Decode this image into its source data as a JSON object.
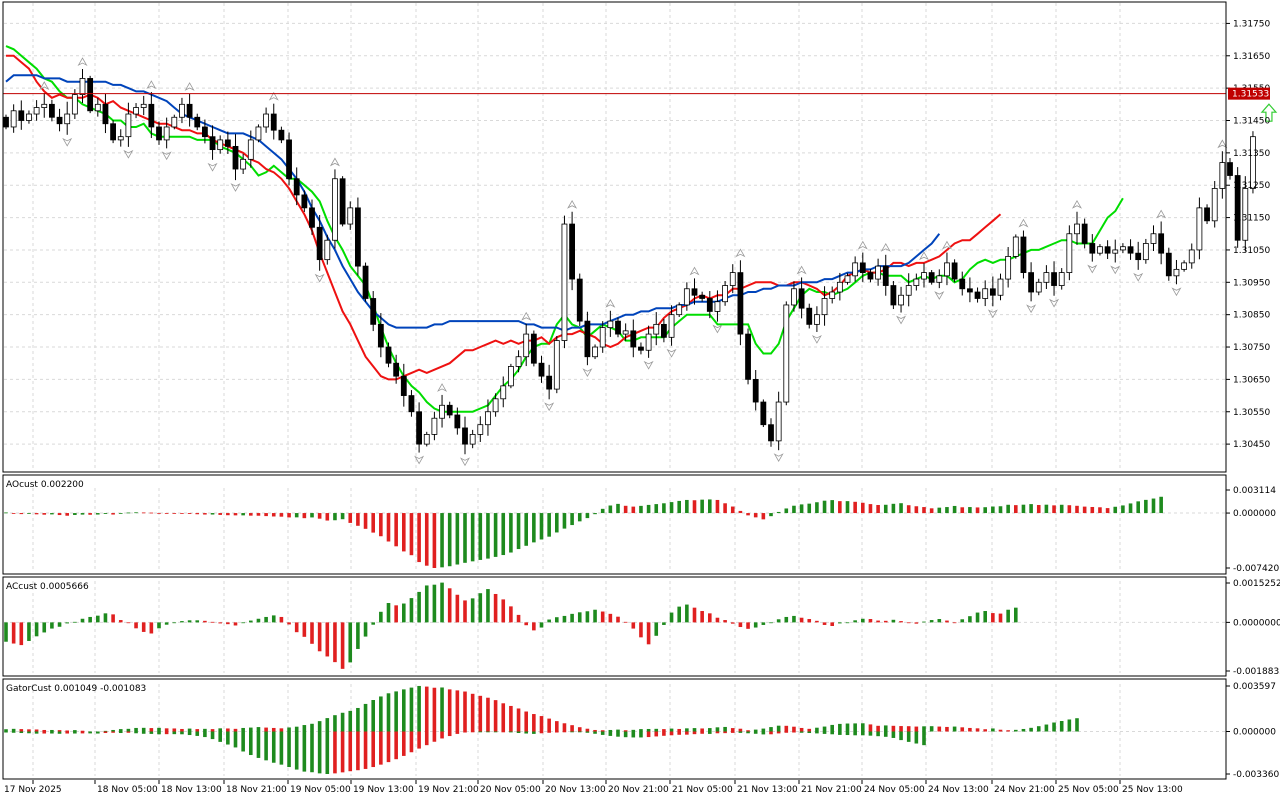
{
  "chart_data": {
    "type": "candlestick",
    "symbol_price_label": "1.31533",
    "price_axis_ticks": [
      "1.31750",
      "1.31650",
      "1.31550",
      "1.31450",
      "1.31350",
      "1.31250",
      "1.31150",
      "1.31050",
      "1.30950",
      "1.30850",
      "1.30750",
      "1.30650",
      "1.30550",
      "1.30450"
    ],
    "price_range": [
      1.3037,
      1.3181
    ],
    "current_price": 1.31533,
    "time_labels": [
      "17 Nov 2025",
      "18 Nov 05:00",
      "18 Nov 13:00",
      "18 Nov 21:00",
      "19 Nov 05:00",
      "19 Nov 13:00",
      "19 Nov 21:00",
      "20 Nov 05:00",
      "20 Nov 13:00",
      "20 Nov 21:00",
      "21 Nov 05:00",
      "21 Nov 13:00",
      "21 Nov 21:00",
      "24 Nov 05:00",
      "24 Nov 13:00",
      "24 Nov 21:00",
      "25 Nov 05:00",
      "25 Nov 13:00"
    ],
    "closes": [
      1.3143,
      1.3148,
      1.3145,
      1.3147,
      1.3149,
      1.315,
      1.3146,
      1.3144,
      1.3147,
      1.3153,
      1.3158,
      1.3148,
      1.315,
      1.3144,
      1.3139,
      1.314,
      1.3147,
      1.3149,
      1.315,
      1.3143,
      1.3139,
      1.3143,
      1.3146,
      1.315,
      1.3146,
      1.3143,
      1.314,
      1.3136,
      1.3139,
      1.3137,
      1.313,
      1.3133,
      1.3139,
      1.3143,
      1.3147,
      1.3142,
      1.3139,
      1.3127,
      1.3122,
      1.3118,
      1.3112,
      1.3102,
      1.3108,
      1.3127,
      1.3113,
      1.3118,
      1.31,
      1.309,
      1.3082,
      1.3075,
      1.307,
      1.3066,
      1.306,
      1.3055,
      1.3045,
      1.3048,
      1.3053,
      1.3057,
      1.3054,
      1.305,
      1.3045,
      1.3048,
      1.3051,
      1.3055,
      1.3059,
      1.3063,
      1.3069,
      1.3072,
      1.3079,
      1.307,
      1.3066,
      1.3062,
      1.3077,
      1.3113,
      1.3096,
      1.3083,
      1.3072,
      1.3075,
      1.3081,
      1.3083,
      1.3079,
      1.308,
      1.3075,
      1.3074,
      1.3079,
      1.3082,
      1.3078,
      1.3085,
      1.3088,
      1.3093,
      1.3091,
      1.309,
      1.3086,
      1.3089,
      1.3094,
      1.3098,
      1.3079,
      1.3065,
      1.3058,
      1.3051,
      1.3046,
      1.3058,
      1.3088,
      1.3093,
      1.3087,
      1.3082,
      1.3085,
      1.309,
      1.3092,
      1.3095,
      1.3097,
      1.3101,
      1.3098,
      1.3096,
      1.31,
      1.3094,
      1.3088,
      1.3091,
      1.3094,
      1.3096,
      1.3098,
      1.3095,
      1.3097,
      1.3101,
      1.3096,
      1.3093,
      1.3092,
      1.309,
      1.3093,
      1.3091,
      1.3096,
      1.3103,
      1.3109,
      1.3098,
      1.3092,
      1.3095,
      1.3098,
      1.3094,
      1.3098,
      1.311,
      1.3113,
      1.3107,
      1.3104,
      1.3106,
      1.3104,
      1.3105,
      1.3106,
      1.3104,
      1.3102,
      1.3107,
      1.311,
      1.3104,
      1.3097,
      1.3099,
      1.3101,
      1.3105,
      1.3118,
      1.3114,
      1.3124,
      1.3132,
      1.3128,
      1.3108,
      1.3124,
      1.314
    ],
    "alligator": [
      {
        "name": "",
        "color": "#00dd00",
        "values": [
          1.3168,
          1.3167,
          1.3165,
          1.3163,
          1.3161,
          1.3158,
          1.3157,
          1.3154,
          1.3152,
          1.3152,
          1.315,
          1.3149,
          1.3148,
          1.3147,
          1.3145,
          1.3145,
          1.3143,
          1.3143,
          1.3144,
          1.3141,
          1.314,
          1.314,
          1.314,
          1.314,
          1.314,
          1.3139,
          1.3139,
          1.3139,
          1.3137,
          1.3136,
          1.3135,
          1.3133,
          1.3131,
          1.3128,
          1.3129,
          1.3131,
          1.3129,
          1.3127,
          1.3127,
          1.3125,
          1.3123,
          1.312,
          1.3114,
          1.3109,
          1.3105,
          1.31,
          1.3097,
          1.3094,
          1.3088,
          1.3081,
          1.3075,
          1.307,
          1.3066,
          1.3063,
          1.3061,
          1.3058,
          1.3056,
          1.3055,
          1.3055,
          1.3055,
          1.3055,
          1.3055,
          1.3056,
          1.3057,
          1.306,
          1.3063,
          1.3065,
          1.3068,
          1.3072,
          1.3075,
          1.3076,
          1.3076,
          1.3082,
          1.3085,
          1.3082,
          1.3081,
          1.3078,
          1.308,
          1.3082,
          1.3081,
          1.308,
          1.3077,
          1.3077,
          1.3078,
          1.3078,
          1.3078,
          1.3078,
          1.3081,
          1.3083,
          1.3085,
          1.3085,
          1.3085,
          1.3085,
          1.3082,
          1.3082,
          1.3082,
          1.3082,
          1.3082,
          1.3076,
          1.3073,
          1.3073,
          1.3076,
          1.3083,
          1.3087,
          1.3091,
          1.3093,
          1.3092,
          1.3092,
          1.3091,
          1.3092,
          1.3093,
          1.3095,
          1.3097,
          1.3098,
          1.3098,
          1.3097,
          1.3097,
          1.3097,
          1.3095,
          1.3096,
          1.3097,
          1.3096,
          1.3097,
          1.3097,
          1.3095,
          1.3096,
          1.3099,
          1.3101,
          1.3102,
          1.3101,
          1.3102,
          1.3102,
          1.3103,
          1.3104,
          1.3105,
          1.3105,
          1.3106,
          1.3107,
          1.3108,
          1.3108,
          1.3107,
          1.3107,
          1.3107,
          1.3111,
          1.3115,
          1.3117,
          1.3121
        ]
      },
      {
        "name": "",
        "color": "#ee1111",
        "values": [
          1.3165,
          1.3165,
          1.3163,
          1.3161,
          1.3157,
          1.3154,
          1.3152,
          1.3153,
          1.3152,
          1.3152,
          1.3152,
          1.3153,
          1.3152,
          1.315,
          1.3151,
          1.3149,
          1.3148,
          1.3147,
          1.3146,
          1.3145,
          1.3144,
          1.3144,
          1.3143,
          1.3142,
          1.3142,
          1.3141,
          1.3141,
          1.3139,
          1.3138,
          1.3137,
          1.3136,
          1.3135,
          1.3133,
          1.3132,
          1.313,
          1.3129,
          1.3127,
          1.3124,
          1.312,
          1.3116,
          1.3111,
          1.3104,
          1.3098,
          1.3092,
          1.3086,
          1.3082,
          1.3077,
          1.3072,
          1.3069,
          1.3066,
          1.3065,
          1.3065,
          1.3066,
          1.3067,
          1.3068,
          1.3067,
          1.3068,
          1.3069,
          1.307,
          1.3072,
          1.3074,
          1.3074,
          1.3075,
          1.3076,
          1.3077,
          1.3076,
          1.3077,
          1.3076,
          1.3077,
          1.3077,
          1.3078,
          1.3076,
          1.3078,
          1.3079,
          1.3079,
          1.308,
          1.3079,
          1.3078,
          1.3076,
          1.3075,
          1.3076,
          1.3078,
          1.3079,
          1.308,
          1.3081,
          1.3081,
          1.3084,
          1.3086,
          1.3087,
          1.3088,
          1.309,
          1.3091,
          1.309,
          1.3091,
          1.3091,
          1.3093,
          1.3093,
          1.3094,
          1.3095,
          1.3095,
          1.3095,
          1.3094,
          1.3094,
          1.3095,
          1.3095,
          1.3094,
          1.3093,
          1.3091,
          1.3092,
          1.3094,
          1.3097,
          1.3098,
          1.3099,
          1.3098,
          1.3098,
          1.3099,
          1.3101,
          1.3101,
          1.31,
          1.3101,
          1.3101,
          1.3102,
          1.3103,
          1.3105,
          1.3107,
          1.3108,
          1.3108,
          1.311,
          1.3112,
          1.3114,
          1.3116
        ]
      },
      {
        "name": "",
        "color": "#0044bb",
        "values": [
          1.3157,
          1.3159,
          1.3159,
          1.3159,
          1.3159,
          1.3158,
          1.3158,
          1.3158,
          1.3157,
          1.3157,
          1.3157,
          1.3157,
          1.3157,
          1.3157,
          1.3156,
          1.3156,
          1.3155,
          1.3154,
          1.3154,
          1.3153,
          1.3152,
          1.3151,
          1.3149,
          1.3147,
          1.3146,
          1.3145,
          1.3144,
          1.3143,
          1.3142,
          1.3141,
          1.3141,
          1.3141,
          1.314,
          1.3139,
          1.3137,
          1.3135,
          1.3133,
          1.313,
          1.3127,
          1.3123,
          1.3118,
          1.3114,
          1.3109,
          1.3105,
          1.31,
          1.3096,
          1.3092,
          1.3089,
          1.3086,
          1.3084,
          1.3082,
          1.3081,
          1.3081,
          1.3081,
          1.3081,
          1.3081,
          1.3082,
          1.3082,
          1.3083,
          1.3083,
          1.3083,
          1.3083,
          1.3083,
          1.3083,
          1.3083,
          1.3083,
          1.3083,
          1.3083,
          1.3082,
          1.3082,
          1.3081,
          1.3081,
          1.3081,
          1.308,
          1.3081,
          1.3081,
          1.3082,
          1.3082,
          1.3082,
          1.3083,
          1.3084,
          1.3085,
          1.3085,
          1.3086,
          1.3086,
          1.3087,
          1.3087,
          1.3087,
          1.3088,
          1.3088,
          1.3089,
          1.3089,
          1.3089,
          1.3089,
          1.309,
          1.3091,
          1.3091,
          1.3092,
          1.3092,
          1.3093,
          1.3093,
          1.3094,
          1.3094,
          1.3094,
          1.3095,
          1.3095,
          1.3095,
          1.3096,
          1.3096,
          1.3097,
          1.3098,
          1.3098,
          1.3099,
          1.3099,
          1.31,
          1.31,
          1.31,
          1.31,
          1.3101,
          1.3103,
          1.3105,
          1.3107,
          1.311
        ]
      }
    ],
    "indicators": [
      {
        "title": "AOcust 0.002200",
        "ticks": [
          "0.003114",
          "0.000000",
          "-0.007420"
        ],
        "range": [
          -0.00742,
          0.003114
        ]
      },
      {
        "title": "ACcust 0.0005666",
        "ticks": [
          "0.0015252",
          "0.0000000",
          "-0.0018835"
        ],
        "range": [
          -0.0018835,
          0.0015252
        ]
      },
      {
        "title": "GatorCust 0.001049 -0.001083",
        "ticks": [
          "0.003597",
          "0.000000",
          "-0.003360"
        ],
        "range": [
          -0.00336,
          0.003597
        ]
      }
    ],
    "ao_values": [
      8e-05,
      -0.00011,
      -0.00014,
      -0.00011,
      -0.00017,
      -0.00022,
      -0.00018,
      -0.00027,
      -0.00036,
      -0.00026,
      -0.00021,
      -0.00023,
      -0.0002,
      -0.00012,
      -0.0002,
      -4e-05,
      7e-05,
      0.0001,
      8e-05,
      6e-05,
      1e-05,
      -4e-05,
      -7e-05,
      -0.0001,
      -0.00012,
      -0.00016,
      -0.0002,
      -0.0002,
      -0.00025,
      -0.00029,
      -0.00031,
      -0.00031,
      -0.00035,
      -0.00036,
      -0.00041,
      -0.00046,
      -0.00049,
      -0.00059,
      -0.00058,
      -0.00069,
      -0.00059,
      -0.00076,
      -0.00101,
      -0.00097,
      -0.00083,
      -0.00133,
      -0.00172,
      -0.00213,
      -0.00264,
      -0.00313,
      -0.00384,
      -0.00449,
      -0.00518,
      -0.00569,
      -0.00662,
      -0.00711,
      -0.00742,
      -0.00733,
      -0.00718,
      -0.00695,
      -0.00672,
      -0.00652,
      -0.00633,
      -0.00615,
      -0.00592,
      -0.00567,
      -0.00533,
      -0.00486,
      -0.00442,
      -0.00396,
      -0.00357,
      -0.00319,
      -0.00262,
      -0.0021,
      -0.00162,
      -0.00112,
      -0.00068,
      -0.00015,
      0.00057,
      0.00102,
      0.00124,
      0.00098,
      0.00087,
      0.00097,
      0.0011,
      0.00121,
      0.00132,
      0.00148,
      0.00164,
      0.00177,
      0.00173,
      0.00181,
      0.00184,
      0.00177,
      0.00132,
      0.00088,
      0.00029,
      -0.00031,
      -0.00058,
      -0.00085,
      -0.00042,
      0.00015,
      0.00062,
      0.00099,
      0.00117,
      0.00127,
      0.00146,
      0.00167,
      0.00175,
      0.00161,
      0.00161,
      0.00152,
      0.00139,
      0.00121,
      0.00109,
      0.00112,
      0.00125,
      0.00133,
      0.00106,
      0.00092,
      0.00081,
      0.00064,
      0.00073,
      0.00081,
      0.00096,
      0.00078,
      0.00081,
      0.00076,
      0.00079,
      0.00088,
      0.00092,
      0.00112,
      0.00107,
      0.00113,
      0.00121,
      0.00109,
      0.00113,
      0.00104,
      0.00112,
      0.00106,
      0.00098,
      0.00087,
      0.00082,
      0.00078,
      0.00067,
      0.00085,
      0.00103,
      0.0013,
      0.00158,
      0.00178,
      0.00196,
      0.0022
    ],
    "ac_values": [
      -0.00075,
      -0.00082,
      -0.00088,
      -0.00072,
      -0.00054,
      -0.00039,
      -0.00024,
      -0.00017,
      -4e-05,
      2e-05,
      0.00014,
      0.00021,
      0.00026,
      0.00035,
      0.00031,
      9e-05,
      -3e-05,
      -0.00023,
      -0.00037,
      -0.00043,
      -0.00023,
      -9e-05,
      -2e-05,
      5e-05,
      8e-05,
      8e-05,
      6e-05,
      2e-05,
      -4e-05,
      -7e-05,
      -0.00012,
      -2e-05,
      7e-05,
      0.00014,
      0.00021,
      0.00027,
      0.00021,
      -8e-05,
      -0.00038,
      -0.00056,
      -0.00083,
      -0.00112,
      -0.00132,
      -0.00154,
      -0.0018,
      -0.00155,
      -0.00103,
      -0.00055,
      -9e-05,
      0.00041,
      0.00075,
      0.00066,
      0.00073,
      0.00094,
      0.00118,
      0.00143,
      0.00146,
      0.00154,
      0.00132,
      0.00107,
      0.00085,
      0.00093,
      0.00113,
      0.00129,
      0.0011,
      0.00089,
      0.00062,
      0.00029,
      -0.00011,
      -0.00031,
      -0.0002,
      0.00011,
      0.0002,
      0.00025,
      0.00033,
      0.00039,
      0.00043,
      0.00049,
      0.00042,
      0.00033,
      0.00022,
      2e-05,
      -0.00024,
      -0.00058,
      -0.00085,
      -0.00052,
      -0.0001,
      0.00038,
      0.00061,
      0.00069,
      0.00057,
      0.00044,
      0.00035,
      0.00018,
      9e-05,
      -5e-05,
      -0.00018,
      -0.00025,
      -0.0002,
      -0.0001,
      0.0,
      0.00012,
      0.00021,
      0.00025,
      0.00018,
      0.00013,
      6e-05,
      -0.0001,
      -0.00014,
      -4e-05,
      -1e-05,
      8e-05,
      0.00014,
      0.00013,
      7e-05,
      6e-05,
      0.0001,
      5e-05,
      -3e-05,
      -5e-05,
      3e-05,
      9e-05,
      0.00013,
      7e-05,
      0.0,
      0.00012,
      0.00024,
      0.00038,
      0.00044,
      0.00036,
      0.00034,
      0.00049,
      0.00057
    ],
    "gator_upper": [
      0.00018,
      0.00021,
      0.00019,
      0.00017,
      0.00016,
      0.00012,
      0.00012,
      0.00011,
      8e-05,
      0.00011,
      6e-05,
      0.0,
      0.0,
      5e-05,
      0.00012,
      0.00019,
      0.00021,
      0.00028,
      0.00029,
      0.00027,
      0.00029,
      0.00025,
      0.00024,
      0.0002,
      0.00023,
      0.00019,
      0.00021,
      0.00019,
      0.00025,
      0.00024,
      0.00021,
      0.00028,
      0.00031,
      0.00035,
      0.00031,
      0.00028,
      0.00025,
      0.00032,
      0.00038,
      0.00051,
      0.00061,
      0.00082,
      0.00106,
      0.00129,
      0.00148,
      0.00163,
      0.00186,
      0.00218,
      0.00249,
      0.00277,
      0.00302,
      0.00317,
      0.00333,
      0.00347,
      0.0036,
      0.00355,
      0.00346,
      0.00348,
      0.00333,
      0.00325,
      0.00316,
      0.00298,
      0.00282,
      0.00267,
      0.00248,
      0.00223,
      0.00202,
      0.00182,
      0.00158,
      0.00138,
      0.00122,
      0.00102,
      0.00082,
      0.00065,
      0.0005,
      0.00034,
      0.00022,
      0.00012,
      0.0001,
      0.00012,
      0.00015,
      0.0001,
      0.00013,
      0.00019,
      0.0002,
      0.00021,
      0.00019,
      0.00023,
      0.0002,
      0.00025,
      0.00027,
      0.00024,
      0.00027,
      0.00033,
      0.00036,
      0.00027,
      0.00022,
      0.0001,
      0.00015,
      0.00023,
      0.00035,
      0.00046,
      0.00045,
      0.00038,
      0.00028,
      0.00021,
      0.0003,
      0.00039,
      0.00052,
      0.0006,
      0.00063,
      0.00064,
      0.00065,
      0.00056,
      0.00045,
      0.00048,
      0.00045,
      0.00043,
      0.00042,
      0.00039,
      0.00041,
      0.00042,
      0.00039,
      0.00036,
      0.00039,
      0.00033,
      0.00028,
      0.00025,
      0.00018,
      0.00024,
      0.00014,
      0.0001,
      0.00013,
      0.0002,
      0.00029,
      0.00042,
      0.00055,
      0.00071,
      0.00083,
      0.00095,
      0.00105
    ],
    "gator_lower": [
      -8e-05,
      -0.0001,
      -0.00012,
      -0.00014,
      -0.00017,
      -0.00016,
      -0.00016,
      -0.00018,
      -0.00016,
      -0.00016,
      -0.00015,
      -0.00015,
      -0.00016,
      -0.00012,
      -0.0001,
      -0.00012,
      -0.0001,
      -0.00014,
      -0.00018,
      -0.00019,
      -0.00022,
      -0.00021,
      -0.00021,
      -0.00022,
      -0.00028,
      -0.00035,
      -0.00044,
      -0.0006,
      -0.00082,
      -0.00103,
      -0.00126,
      -0.00158,
      -0.00186,
      -0.00209,
      -0.00228,
      -0.00247,
      -0.00262,
      -0.00281,
      -0.00301,
      -0.00317,
      -0.00322,
      -0.00331,
      -0.00336,
      -0.00331,
      -0.00323,
      -0.00314,
      -0.00306,
      -0.00296,
      -0.00281,
      -0.00262,
      -0.00242,
      -0.00219,
      -0.00193,
      -0.00164,
      -0.00135,
      -0.00108,
      -0.00081,
      -0.00055,
      -0.00036,
      -0.00019,
      -8e-05,
      -2e-05,
      -3e-05,
      -6e-05,
      -6e-05,
      -5e-05,
      -7e-05,
      -0.00012,
      -0.00016,
      -0.00019,
      -0.00014,
      -0.0001,
      -8e-05,
      -6e-05,
      -6e-05,
      -6e-05,
      -0.0001,
      -0.00018,
      -0.00027,
      -0.00035,
      -0.00041,
      -0.00045,
      -0.00047,
      -0.00047,
      -0.00044,
      -0.00039,
      -0.00034,
      -0.0003,
      -0.00026,
      -0.00025,
      -0.00021,
      -0.00018,
      -0.00019,
      -0.00014,
      -0.00013,
      -0.00011,
      -0.00011,
      -0.00014,
      -0.00018,
      -0.00023,
      -0.00022,
      -0.00015,
      -0.0001,
      -8e-05,
      -0.0001,
      -0.00012,
      -0.00015,
      -0.00019,
      -0.00022,
      -0.00027,
      -0.00028,
      -0.0003,
      -0.0003,
      -0.00033,
      -0.00037,
      -0.00042,
      -0.00051,
      -0.00068,
      -0.00082,
      -0.00095,
      -0.00108
    ]
  }
}
